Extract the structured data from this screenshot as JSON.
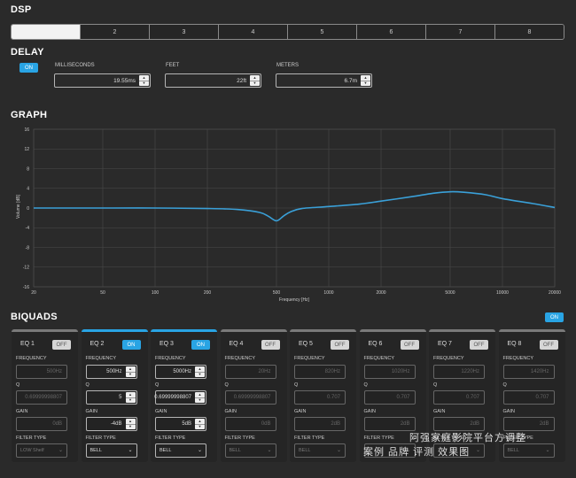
{
  "dsp": {
    "title": "DSP",
    "tabs": [
      "",
      "2",
      "3",
      "4",
      "5",
      "6",
      "7",
      "8"
    ]
  },
  "delay": {
    "title": "DELAY",
    "toggle": "ON",
    "milliseconds_label": "MILLISECONDS",
    "milliseconds_value": "19.55ms",
    "feet_label": "FEET",
    "feet_value": "22ft",
    "meters_label": "METERS",
    "meters_value": "6.7m"
  },
  "graph": {
    "title": "GRAPH"
  },
  "chart_data": {
    "type": "line",
    "xlabel": "Frequency [Hz]",
    "ylabel": "Volume [dB]",
    "x_scale": "log",
    "xlim": [
      20,
      20000
    ],
    "ylim": [
      -16,
      16
    ],
    "x_ticks": [
      "20",
      "50",
      "100",
      "200",
      "500",
      "1000",
      "2000",
      "5000",
      "10000",
      "20000"
    ],
    "y_ticks": [
      "16",
      "12",
      "8",
      "4",
      "0",
      "-4",
      "-8",
      "-12",
      "-16"
    ],
    "grid": true,
    "series": [
      {
        "color": "#3aa0d8",
        "x": [
          20,
          50,
          100,
          200,
          300,
          400,
          450,
          500,
          550,
          600,
          700,
          1000,
          1500,
          2000,
          3000,
          4000,
          5000,
          6000,
          8000,
          10000,
          15000,
          20000
        ],
        "y": [
          0,
          0,
          0,
          -0.1,
          -0.3,
          -0.9,
          -1.7,
          -2.6,
          -1.6,
          -0.8,
          -0.1,
          0.3,
          0.8,
          1.4,
          2.3,
          3.0,
          3.3,
          3.2,
          2.7,
          1.9,
          0.9,
          0.1
        ]
      }
    ]
  },
  "biquads": {
    "title": "BIQUADS",
    "toggle": "ON",
    "frequency_label": "FREQUENCY",
    "q_label": "Q",
    "gain_label": "GAIN",
    "filter_type_label": "FILTER TYPE",
    "items": [
      {
        "name": "EQ 1",
        "toggle": "OFF",
        "on": false,
        "frequency": "500Hz",
        "q": "0.69999998807",
        "gain": "0dB",
        "filter_type": "LOW Shelf"
      },
      {
        "name": "EQ 2",
        "toggle": "ON",
        "on": true,
        "frequency": "500Hz",
        "q": "5",
        "gain": "-4dB",
        "filter_type": "BELL"
      },
      {
        "name": "EQ 3",
        "toggle": "ON",
        "on": true,
        "frequency": "5000Hz",
        "q": "0.69999998807",
        "gain": "5dB",
        "filter_type": "BELL"
      },
      {
        "name": "EQ 4",
        "toggle": "OFF",
        "on": false,
        "frequency": "20Hz",
        "q": "0.69999998807",
        "gain": "0dB",
        "filter_type": "BELL"
      },
      {
        "name": "EQ 5",
        "toggle": "OFF",
        "on": false,
        "frequency": "820Hz",
        "q": "0.707",
        "gain": "2dB",
        "filter_type": "BELL"
      },
      {
        "name": "EQ 6",
        "toggle": "OFF",
        "on": false,
        "frequency": "1020Hz",
        "q": "0.707",
        "gain": "2dB",
        "filter_type": ""
      },
      {
        "name": "EQ 7",
        "toggle": "OFF",
        "on": false,
        "frequency": "1220Hz",
        "q": "0.707",
        "gain": "2dB",
        "filter_type": ""
      },
      {
        "name": "EQ 8",
        "toggle": "OFF",
        "on": false,
        "frequency": "1420Hz",
        "q": "0.707",
        "gain": "2dB",
        "filter_type": "BELL"
      }
    ]
  },
  "watermark": {
    "line1": "阿强家庭影院平台方调整",
    "line2": "案例  品牌  评测  效果图"
  },
  "colors": {
    "accent": "#29a4e4",
    "background": "#2a2a2a",
    "curve": "#3aa0d8"
  }
}
